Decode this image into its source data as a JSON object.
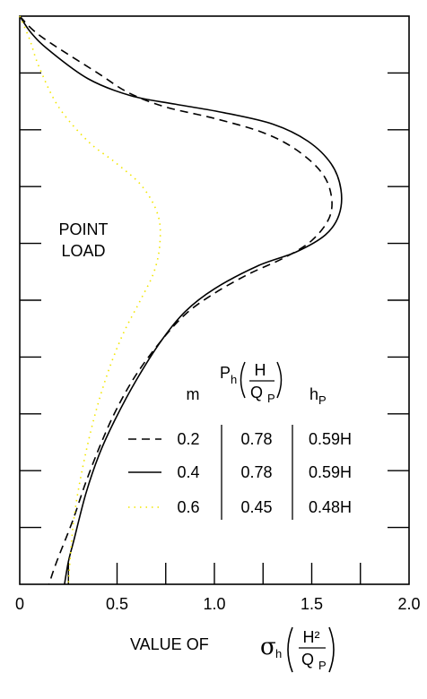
{
  "chart_data": {
    "type": "line",
    "xlim": [
      0,
      2.0
    ],
    "ylim": [
      0,
      1.0
    ],
    "x_ticks": [
      0,
      0.5,
      1.0,
      1.5,
      2.0
    ],
    "x_tick_labels": [
      "0",
      "0.5",
      "1.0",
      "1.5",
      "2.0"
    ],
    "xlabel_prefix": "VALUE OF",
    "xlabel_symbol": "σ",
    "xlabel_symbol_sub": "h",
    "xlabel_numerator": "H²",
    "xlabel_denominator": "Q",
    "xlabel_denominator_sub": "P",
    "annotation": [
      "POINT",
      "LOAD"
    ],
    "legend_table": {
      "header_m": "m",
      "header_Ph": "P",
      "header_Ph_sub": "h",
      "header_Ph_numerator": "H",
      "header_Ph_denominator": "Q",
      "header_Ph_denominator_sub": "P",
      "header_hp": "h",
      "header_hp_sub": "P",
      "rows": [
        {
          "m": "0.2",
          "Ph": "0.78",
          "hp": "0.59H"
        },
        {
          "m": "0.4",
          "Ph": "0.78",
          "hp": "0.59H"
        },
        {
          "m": "0.6",
          "Ph": "0.45",
          "hp": "0.48H"
        }
      ]
    },
    "series": [
      {
        "line_style": "dashed",
        "color": "#000000",
        "points": [
          [
            0,
            0
          ],
          [
            0.07,
            0.025
          ],
          [
            0.17,
            0.05
          ],
          [
            0.4,
            0.1
          ],
          [
            0.56,
            0.135
          ],
          [
            0.75,
            0.16
          ],
          [
            1.0,
            0.18
          ],
          [
            1.25,
            0.205
          ],
          [
            1.42,
            0.235
          ],
          [
            1.55,
            0.275
          ],
          [
            1.6,
            0.315
          ],
          [
            1.59,
            0.355
          ],
          [
            1.5,
            0.395
          ],
          [
            1.36,
            0.425
          ],
          [
            1.17,
            0.455
          ],
          [
            0.99,
            0.49
          ],
          [
            0.85,
            0.525
          ],
          [
            0.73,
            0.57
          ],
          [
            0.6,
            0.63
          ],
          [
            0.5,
            0.69
          ],
          [
            0.42,
            0.75
          ],
          [
            0.34,
            0.82
          ],
          [
            0.27,
            0.89
          ],
          [
            0.19,
            0.96
          ],
          [
            0.15,
            1.0
          ]
        ]
      },
      {
        "line_style": "solid",
        "color": "#000000",
        "points": [
          [
            0,
            0
          ],
          [
            0.06,
            0.03
          ],
          [
            0.15,
            0.06
          ],
          [
            0.35,
            0.11
          ],
          [
            0.57,
            0.14
          ],
          [
            0.8,
            0.155
          ],
          [
            1.05,
            0.17
          ],
          [
            1.3,
            0.19
          ],
          [
            1.48,
            0.22
          ],
          [
            1.6,
            0.26
          ],
          [
            1.65,
            0.305
          ],
          [
            1.64,
            0.35
          ],
          [
            1.57,
            0.385
          ],
          [
            1.42,
            0.415
          ],
          [
            1.22,
            0.44
          ],
          [
            1.0,
            0.48
          ],
          [
            0.85,
            0.52
          ],
          [
            0.73,
            0.57
          ],
          [
            0.6,
            0.64
          ],
          [
            0.49,
            0.71
          ],
          [
            0.41,
            0.77
          ],
          [
            0.34,
            0.84
          ],
          [
            0.28,
            0.92
          ],
          [
            0.25,
            0.96
          ],
          [
            0.23,
            1.0
          ]
        ]
      },
      {
        "line_style": "dotted",
        "color": "#f2e600",
        "points": [
          [
            0,
            0
          ],
          [
            0.05,
            0.04
          ],
          [
            0.1,
            0.09
          ],
          [
            0.2,
            0.16
          ],
          [
            0.35,
            0.22
          ],
          [
            0.5,
            0.26
          ],
          [
            0.63,
            0.3
          ],
          [
            0.71,
            0.35
          ],
          [
            0.72,
            0.4
          ],
          [
            0.69,
            0.45
          ],
          [
            0.62,
            0.5
          ],
          [
            0.53,
            0.56
          ],
          [
            0.45,
            0.63
          ],
          [
            0.38,
            0.71
          ],
          [
            0.32,
            0.8
          ],
          [
            0.28,
            0.88
          ],
          [
            0.26,
            0.95
          ],
          [
            0.25,
            1.0
          ]
        ]
      }
    ]
  }
}
